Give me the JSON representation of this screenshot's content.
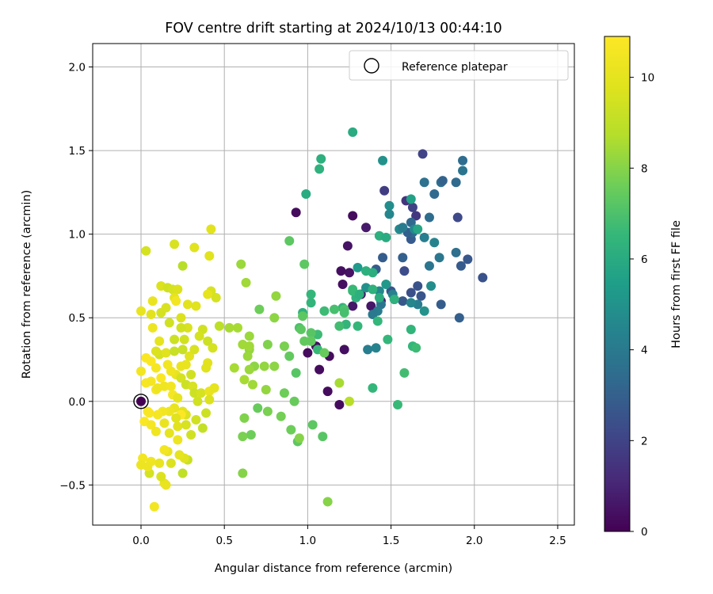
{
  "chart_data": {
    "type": "scatter",
    "title": "FOV centre drift starting at 2024/10/13 00:44:10",
    "xlabel": "Angular distance from reference (arcmin)",
    "ylabel": "Rotation from reference (arcmin)",
    "xlim": [
      -0.29,
      2.6
    ],
    "ylim": [
      -0.74,
      2.14
    ],
    "xticks": [
      0.0,
      0.5,
      1.0,
      1.5,
      2.0,
      2.5
    ],
    "yticks": [
      -0.5,
      0.0,
      0.5,
      1.0,
      1.5,
      2.0
    ],
    "xtick_labels": [
      "0.0",
      "0.5",
      "1.0",
      "1.5",
      "2.0",
      "2.5"
    ],
    "ytick_labels": [
      "−0.5",
      "0.0",
      "0.5",
      "1.0",
      "1.5",
      "2.0"
    ],
    "grid": true,
    "legend": {
      "position": "top-right",
      "entries": [
        "Reference platepar"
      ]
    },
    "reference_point": {
      "x": 0.0,
      "y": 0.0
    },
    "colorbar": {
      "label": "Hours from first FF file",
      "colormap": "viridis",
      "range": [
        0,
        10.9
      ],
      "ticks": [
        0,
        2,
        4,
        6,
        8,
        10
      ],
      "tick_labels": [
        "0",
        "2",
        "4",
        "6",
        "8",
        "10"
      ]
    },
    "points": [
      [
        0.0,
        0.0,
        0.0
      ],
      [
        0.93,
        1.13,
        0.3
      ],
      [
        1.27,
        1.11,
        0.3
      ],
      [
        1.12,
        0.06,
        0.3
      ],
      [
        1.19,
        -0.02,
        0.3
      ],
      [
        1.22,
        0.31,
        0.4
      ],
      [
        1.21,
        0.7,
        0.4
      ],
      [
        1.25,
        0.77,
        0.5
      ],
      [
        1.32,
        0.64,
        0.6
      ],
      [
        1.2,
        0.78,
        0.4
      ],
      [
        1.24,
        0.93,
        0.5
      ],
      [
        1.0,
        0.29,
        0.3
      ],
      [
        1.07,
        0.19,
        0.3
      ],
      [
        1.13,
        0.27,
        0.3
      ],
      [
        1.38,
        0.57,
        0.6
      ],
      [
        1.35,
        1.04,
        0.7
      ],
      [
        1.27,
        0.57,
        0.6
      ],
      [
        1.44,
        0.6,
        0.9
      ],
      [
        1.05,
        0.33,
        0.4
      ],
      [
        1.69,
        1.48,
        2.0
      ],
      [
        1.46,
        1.26,
        1.8
      ],
      [
        1.59,
        1.2,
        1.5
      ],
      [
        1.65,
        1.11,
        1.6
      ],
      [
        1.63,
        1.16,
        1.9
      ],
      [
        1.9,
        1.1,
        2.2
      ],
      [
        1.96,
        0.85,
        2.7
      ],
      [
        2.05,
        0.74,
        2.5
      ],
      [
        1.92,
        0.81,
        2.8
      ],
      [
        1.91,
        0.5,
        3.0
      ],
      [
        1.8,
        0.58,
        2.9
      ],
      [
        1.62,
        0.97,
        2.8
      ],
      [
        1.5,
        0.66,
        2.6
      ],
      [
        1.45,
        0.86,
        2.9
      ],
      [
        1.41,
        0.79,
        2.8
      ],
      [
        1.58,
        0.78,
        2.3
      ],
      [
        1.62,
        0.65,
        2.4
      ],
      [
        1.66,
        0.69,
        2.5
      ],
      [
        1.68,
        0.63,
        2.6
      ],
      [
        1.57,
        0.6,
        2.7
      ],
      [
        1.57,
        0.86,
        3.0
      ],
      [
        1.63,
        1.01,
        3.4
      ],
      [
        1.6,
        1.01,
        3.0
      ],
      [
        1.62,
        1.07,
        3.3
      ],
      [
        1.73,
        1.1,
        3.5
      ],
      [
        1.76,
        1.24,
        3.4
      ],
      [
        1.8,
        1.31,
        3.6
      ],
      [
        1.81,
        1.32,
        3.1
      ],
      [
        1.89,
        1.31,
        3.4
      ],
      [
        1.7,
        1.31,
        3.7
      ],
      [
        1.93,
        1.44,
        3.5
      ],
      [
        1.93,
        1.38,
        3.8
      ],
      [
        1.89,
        0.89,
        3.6
      ],
      [
        1.79,
        0.86,
        3.9
      ],
      [
        1.73,
        0.81,
        3.8
      ],
      [
        1.7,
        0.98,
        4.2
      ],
      [
        1.76,
        0.95,
        4.4
      ],
      [
        1.51,
        0.64,
        4.3
      ],
      [
        1.52,
        0.61,
        3.9
      ],
      [
        1.44,
        0.58,
        3.8
      ],
      [
        1.42,
        0.54,
        4.1
      ],
      [
        1.39,
        0.52,
        4.0
      ],
      [
        1.43,
        0.66,
        4.6
      ],
      [
        1.35,
        0.68,
        4.9
      ],
      [
        1.41,
        0.32,
        4.4
      ],
      [
        1.36,
        0.31,
        4.2
      ],
      [
        1.49,
        1.17,
        4.8
      ],
      [
        1.49,
        1.12,
        4.5
      ],
      [
        1.55,
        1.03,
        4.7
      ],
      [
        1.57,
        1.04,
        4.1
      ],
      [
        1.64,
        1.03,
        4.6
      ],
      [
        1.66,
        0.58,
        4.2
      ],
      [
        1.7,
        0.54,
        5.0
      ],
      [
        1.74,
        0.69,
        4.8
      ],
      [
        1.62,
        0.59,
        4.5
      ],
      [
        1.47,
        0.7,
        5.2
      ],
      [
        1.45,
        1.44,
        5.0
      ],
      [
        1.3,
        0.8,
        5.3
      ],
      [
        1.62,
        1.21,
        5.6
      ],
      [
        1.66,
        1.03,
        5.8
      ],
      [
        1.27,
        1.61,
        6.0
      ],
      [
        1.08,
        1.45,
        6.2
      ],
      [
        1.07,
        1.39,
        6.3
      ],
      [
        0.99,
        1.24,
        6.0
      ],
      [
        1.43,
        0.99,
        6.2
      ],
      [
        1.47,
        0.98,
        6.0
      ],
      [
        1.39,
        0.77,
        6.1
      ],
      [
        1.35,
        0.78,
        6.2
      ],
      [
        1.39,
        0.67,
        6.3
      ],
      [
        1.21,
        0.56,
        6.4
      ],
      [
        1.29,
        0.62,
        6.3
      ],
      [
        1.23,
        0.46,
        6.4
      ],
      [
        1.3,
        0.45,
        6.5
      ],
      [
        1.27,
        0.66,
        6.6
      ],
      [
        1.42,
        0.48,
        6.5
      ],
      [
        1.48,
        0.37,
        6.5
      ],
      [
        1.52,
        0.61,
        6.3
      ],
      [
        1.62,
        0.43,
        6.4
      ],
      [
        1.63,
        0.33,
        6.5
      ],
      [
        1.65,
        0.32,
        6.7
      ],
      [
        1.58,
        0.17,
        6.8
      ],
      [
        1.54,
        -0.02,
        6.6
      ],
      [
        1.39,
        0.08,
        6.5
      ],
      [
        1.27,
        0.67,
        6.6
      ],
      [
        1.31,
        0.64,
        6.2
      ],
      [
        1.43,
        0.62,
        6.1
      ],
      [
        0.97,
        0.53,
        6.3
      ],
      [
        1.02,
        0.59,
        6.4
      ],
      [
        1.02,
        0.64,
        6.5
      ],
      [
        1.06,
        0.4,
        6.7
      ],
      [
        1.06,
        0.31,
        6.6
      ],
      [
        1.16,
        0.55,
        6.9
      ],
      [
        1.19,
        0.45,
        6.8
      ],
      [
        1.22,
        0.55,
        7.0
      ],
      [
        1.22,
        0.53,
        6.9
      ],
      [
        1.1,
        0.54,
        6.7
      ],
      [
        0.89,
        0.96,
        7.3
      ],
      [
        0.98,
        0.82,
        7.3
      ],
      [
        0.97,
        0.51,
        7.3
      ],
      [
        0.95,
        0.44,
        7.0
      ],
      [
        1.02,
        0.41,
        7.2
      ],
      [
        1.02,
        0.36,
        7.4
      ],
      [
        0.98,
        0.36,
        7.4
      ],
      [
        0.96,
        0.43,
        7.3
      ],
      [
        1.1,
        0.29,
        7.5
      ],
      [
        0.86,
        0.33,
        7.8
      ],
      [
        0.8,
        0.5,
        8.1
      ],
      [
        0.71,
        0.55,
        7.6
      ],
      [
        0.76,
        0.34,
        7.9
      ],
      [
        0.89,
        0.27,
        7.4
      ],
      [
        0.93,
        0.17,
        7.2
      ],
      [
        0.92,
        0.0,
        7.5
      ],
      [
        0.86,
        0.05,
        7.6
      ],
      [
        1.03,
        -0.14,
        7.3
      ],
      [
        1.09,
        -0.21,
        7.2
      ],
      [
        0.9,
        -0.17,
        7.6
      ],
      [
        0.94,
        -0.24,
        7.3
      ],
      [
        0.84,
        -0.09,
        7.7
      ],
      [
        0.76,
        -0.06,
        7.8
      ],
      [
        0.7,
        -0.04,
        7.5
      ],
      [
        0.66,
        -0.2,
        7.6
      ],
      [
        0.61,
        -0.21,
        7.8
      ],
      [
        0.62,
        -0.1,
        7.9
      ],
      [
        0.61,
        -0.43,
        8.0
      ],
      [
        0.81,
        0.63,
        8.2
      ],
      [
        0.6,
        0.82,
        8.3
      ],
      [
        0.63,
        0.71,
        8.4
      ],
      [
        0.58,
        0.44,
        8.5
      ],
      [
        0.53,
        0.44,
        8.5
      ],
      [
        0.61,
        0.34,
        8.4
      ],
      [
        0.65,
        0.39,
        8.3
      ],
      [
        0.65,
        0.31,
        8.2
      ],
      [
        0.65,
        0.33,
        8.4
      ],
      [
        0.56,
        0.2,
        8.5
      ],
      [
        0.64,
        0.27,
        8.3
      ],
      [
        0.68,
        0.21,
        8.1
      ],
      [
        0.65,
        0.19,
        8.3
      ],
      [
        0.74,
        0.21,
        8.2
      ],
      [
        0.8,
        0.21,
        8.1
      ],
      [
        0.75,
        0.07,
        8.2
      ],
      [
        0.67,
        0.1,
        8.4
      ],
      [
        0.62,
        0.13,
        8.5
      ],
      [
        0.95,
        -0.22,
        8.0
      ],
      [
        1.12,
        -0.6,
        8.0
      ],
      [
        1.19,
        0.11,
        8.5
      ],
      [
        1.25,
        0.0,
        8.8
      ],
      [
        0.25,
        0.81,
        8.8
      ],
      [
        0.47,
        0.45,
        8.9
      ],
      [
        0.42,
        1.03,
        9.9
      ],
      [
        0.41,
        0.87,
        9.8
      ],
      [
        0.32,
        0.92,
        9.8
      ],
      [
        0.2,
        0.94,
        9.6
      ],
      [
        0.12,
        0.69,
        9.7
      ],
      [
        0.16,
        0.68,
        9.4
      ],
      [
        0.19,
        0.67,
        9.5
      ],
      [
        0.2,
        0.62,
        10.0
      ],
      [
        0.22,
        0.67,
        9.7
      ],
      [
        0.21,
        0.6,
        10.5
      ],
      [
        0.28,
        0.58,
        9.9
      ],
      [
        0.33,
        0.57,
        9.8
      ],
      [
        0.42,
        0.66,
        9.6
      ],
      [
        0.45,
        0.62,
        9.5
      ],
      [
        0.4,
        0.64,
        10.0
      ],
      [
        0.37,
        0.43,
        9.4
      ],
      [
        0.35,
        0.39,
        9.5
      ],
      [
        0.28,
        0.44,
        9.6
      ],
      [
        0.24,
        0.44,
        9.4
      ],
      [
        0.24,
        0.5,
        9.7
      ],
      [
        0.12,
        0.53,
        9.5
      ],
      [
        0.15,
        0.56,
        9.6
      ],
      [
        0.17,
        0.47,
        9.4
      ],
      [
        0.06,
        0.52,
        9.9
      ],
      [
        0.07,
        0.6,
        10.2
      ],
      [
        0.0,
        0.54,
        10.1
      ],
      [
        0.03,
        0.9,
        9.5
      ],
      [
        0.07,
        0.44,
        10.3
      ],
      [
        0.11,
        0.36,
        10.0
      ],
      [
        0.11,
        0.28,
        9.5
      ],
      [
        0.09,
        0.3,
        9.7
      ],
      [
        0.15,
        0.29,
        9.8
      ],
      [
        0.2,
        0.3,
        9.2
      ],
      [
        0.2,
        0.37,
        9.3
      ],
      [
        0.26,
        0.37,
        9.4
      ],
      [
        0.25,
        0.31,
        9.2
      ],
      [
        0.29,
        0.27,
        9.9
      ],
      [
        0.32,
        0.31,
        9.6
      ],
      [
        0.4,
        0.36,
        9.3
      ],
      [
        0.43,
        0.32,
        9.5
      ],
      [
        0.4,
        0.23,
        9.9
      ],
      [
        0.39,
        0.2,
        9.8
      ],
      [
        0.3,
        0.16,
        9.4
      ],
      [
        0.27,
        0.22,
        10.1
      ],
      [
        0.24,
        0.21,
        10.2
      ],
      [
        0.21,
        0.16,
        10.2
      ],
      [
        0.18,
        0.18,
        10.4
      ],
      [
        0.16,
        0.22,
        10.5
      ],
      [
        0.09,
        0.2,
        10.6
      ],
      [
        0.06,
        0.24,
        10.8
      ],
      [
        0.03,
        0.26,
        10.8
      ],
      [
        0.0,
        0.18,
        10.5
      ],
      [
        0.03,
        0.11,
        10.7
      ],
      [
        0.06,
        0.12,
        10.6
      ],
      [
        0.09,
        0.07,
        10.6
      ],
      [
        0.1,
        0.08,
        10.3
      ],
      [
        0.12,
        0.14,
        10.8
      ],
      [
        0.14,
        0.09,
        10.4
      ],
      [
        0.18,
        0.09,
        10.5
      ],
      [
        0.24,
        0.14,
        9.5
      ],
      [
        0.27,
        0.1,
        9.3
      ],
      [
        0.31,
        0.09,
        9.6
      ],
      [
        0.32,
        0.05,
        9.3
      ],
      [
        0.34,
        0.0,
        9.4
      ],
      [
        0.36,
        0.05,
        9.5
      ],
      [
        0.41,
        0.06,
        10.2
      ],
      [
        0.44,
        0.08,
        10.0
      ],
      [
        0.41,
        0.01,
        9.7
      ],
      [
        0.39,
        -0.07,
        9.3
      ],
      [
        0.37,
        -0.16,
        9.1
      ],
      [
        0.33,
        -0.11,
        9.4
      ],
      [
        0.27,
        -0.08,
        9.7
      ],
      [
        0.25,
        -0.06,
        9.9
      ],
      [
        0.2,
        -0.04,
        10.1
      ],
      [
        0.17,
        -0.06,
        10.3
      ],
      [
        0.13,
        -0.06,
        10.5
      ],
      [
        0.1,
        -0.08,
        10.6
      ],
      [
        0.05,
        -0.07,
        10.7
      ],
      [
        0.02,
        -0.12,
        10.8
      ],
      [
        0.06,
        -0.14,
        10.6
      ],
      [
        0.09,
        -0.18,
        10.4
      ],
      [
        0.14,
        -0.13,
        10.2
      ],
      [
        0.17,
        -0.19,
        10.0
      ],
      [
        0.22,
        -0.23,
        10.3
      ],
      [
        0.22,
        -0.15,
        9.9
      ],
      [
        0.27,
        -0.14,
        9.6
      ],
      [
        0.3,
        -0.2,
        9.4
      ],
      [
        0.28,
        -0.35,
        9.2
      ],
      [
        0.25,
        -0.43,
        9.0
      ],
      [
        0.26,
        -0.34,
        9.8
      ],
      [
        0.23,
        -0.32,
        10.0
      ],
      [
        0.18,
        -0.37,
        9.7
      ],
      [
        0.16,
        -0.3,
        10.2
      ],
      [
        0.14,
        -0.29,
        10.5
      ],
      [
        0.11,
        -0.37,
        10.1
      ],
      [
        0.06,
        -0.36,
        10.4
      ],
      [
        0.05,
        -0.43,
        9.5
      ],
      [
        0.04,
        -0.39,
        10.3
      ],
      [
        0.01,
        -0.34,
        10.5
      ],
      [
        0.0,
        -0.38,
        10.3
      ],
      [
        0.14,
        -0.49,
        10.1
      ],
      [
        0.15,
        -0.5,
        10.2
      ],
      [
        0.08,
        -0.63,
        10.5
      ],
      [
        0.12,
        -0.45,
        9.7
      ],
      [
        0.24,
        -0.08,
        10.9
      ],
      [
        0.21,
        -0.1,
        9.8
      ],
      [
        0.19,
        0.04,
        10.6
      ],
      [
        0.22,
        0.02,
        10.0
      ],
      [
        0.04,
        -0.06,
        10.7
      ]
    ]
  }
}
